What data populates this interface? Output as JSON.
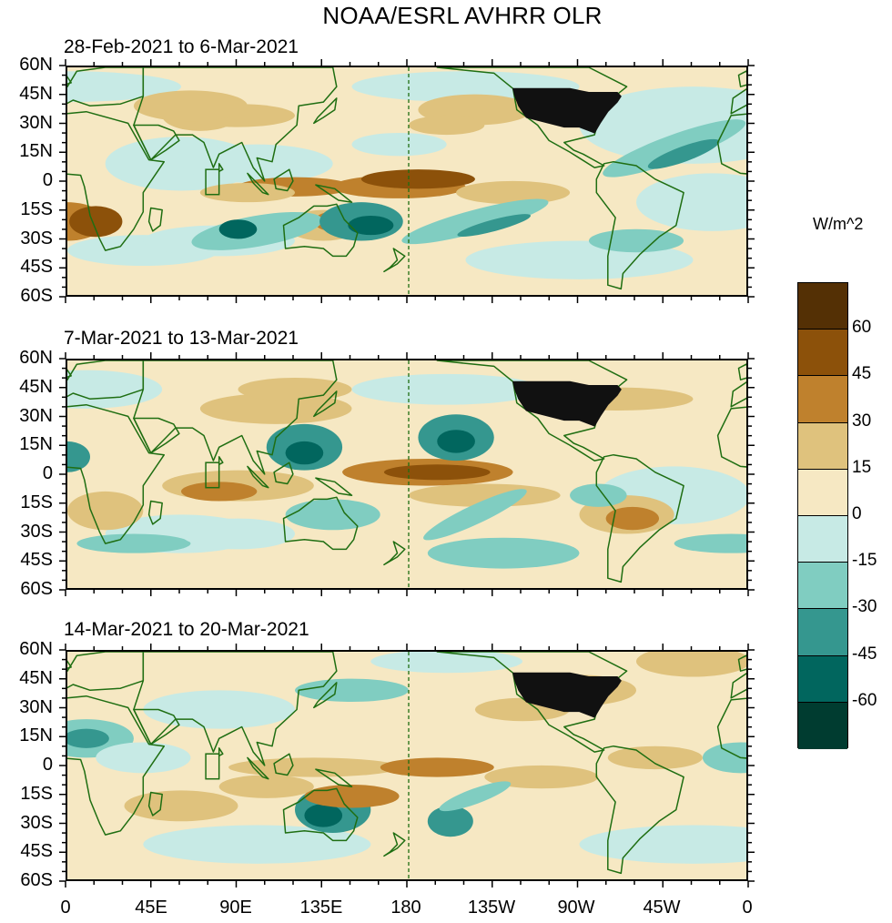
{
  "title": "NOAA/ESRL AVHRR OLR",
  "units": "W/m^2",
  "panels": [
    {
      "label": "28-Feb-2021 to 6-Mar-2021"
    },
    {
      "label": "7-Mar-2021 to 13-Mar-2021"
    },
    {
      "label": "14-Mar-2021 to 20-Mar-2021"
    }
  ],
  "lat_labels": [
    "60N",
    "45N",
    "30N",
    "15N",
    "0",
    "15S",
    "30S",
    "45S",
    "60S"
  ],
  "lon_labels": [
    "0",
    "45E",
    "90E",
    "135E",
    "180",
    "135W",
    "90W",
    "45W",
    "0"
  ],
  "legend": {
    "ticks": [
      "60",
      "45",
      "30",
      "15",
      "0",
      "-15",
      "-30",
      "-45",
      "-60"
    ],
    "colors": [
      "#543005",
      "#8c510a",
      "#bf812d",
      "#dfc27d",
      "#f6e8c3",
      "#c7eae5",
      "#80cdc1",
      "#35978f",
      "#01665e",
      "#003c30"
    ]
  },
  "map_colors": {
    "background": "#f6e8c3",
    "coast": "#1f6e12",
    "land_us": "#111111"
  }
}
